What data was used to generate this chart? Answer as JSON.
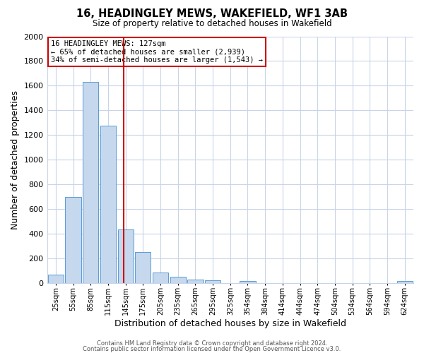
{
  "title": "16, HEADINGLEY MEWS, WAKEFIELD, WF1 3AB",
  "subtitle": "Size of property relative to detached houses in Wakefield",
  "xlabel": "Distribution of detached houses by size in Wakefield",
  "ylabel": "Number of detached properties",
  "bar_labels": [
    "25sqm",
    "55sqm",
    "85sqm",
    "115sqm",
    "145sqm",
    "175sqm",
    "205sqm",
    "235sqm",
    "265sqm",
    "295sqm",
    "325sqm",
    "354sqm",
    "384sqm",
    "414sqm",
    "444sqm",
    "474sqm",
    "504sqm",
    "534sqm",
    "564sqm",
    "594sqm",
    "624sqm"
  ],
  "bar_values": [
    65,
    695,
    1630,
    1275,
    430,
    250,
    85,
    50,
    25,
    20,
    0,
    15,
    0,
    0,
    0,
    0,
    0,
    0,
    0,
    0,
    15
  ],
  "bar_color": "#c5d8ed",
  "bar_edgecolor": "#5b9bd5",
  "vline_x": 4,
  "vline_color": "#cc0000",
  "ylim": [
    0,
    2000
  ],
  "annotation_text": "16 HEADINGLEY MEWS: 127sqm\n← 65% of detached houses are smaller (2,939)\n34% of semi-detached houses are larger (1,543) →",
  "annotation_box_edgecolor": "#cc0000",
  "footer1": "Contains HM Land Registry data © Crown copyright and database right 2024.",
  "footer2": "Contains public sector information licensed under the Open Government Licence v3.0.",
  "bg_color": "#ffffff",
  "grid_color": "#c8d4e8",
  "n_bars": 21
}
